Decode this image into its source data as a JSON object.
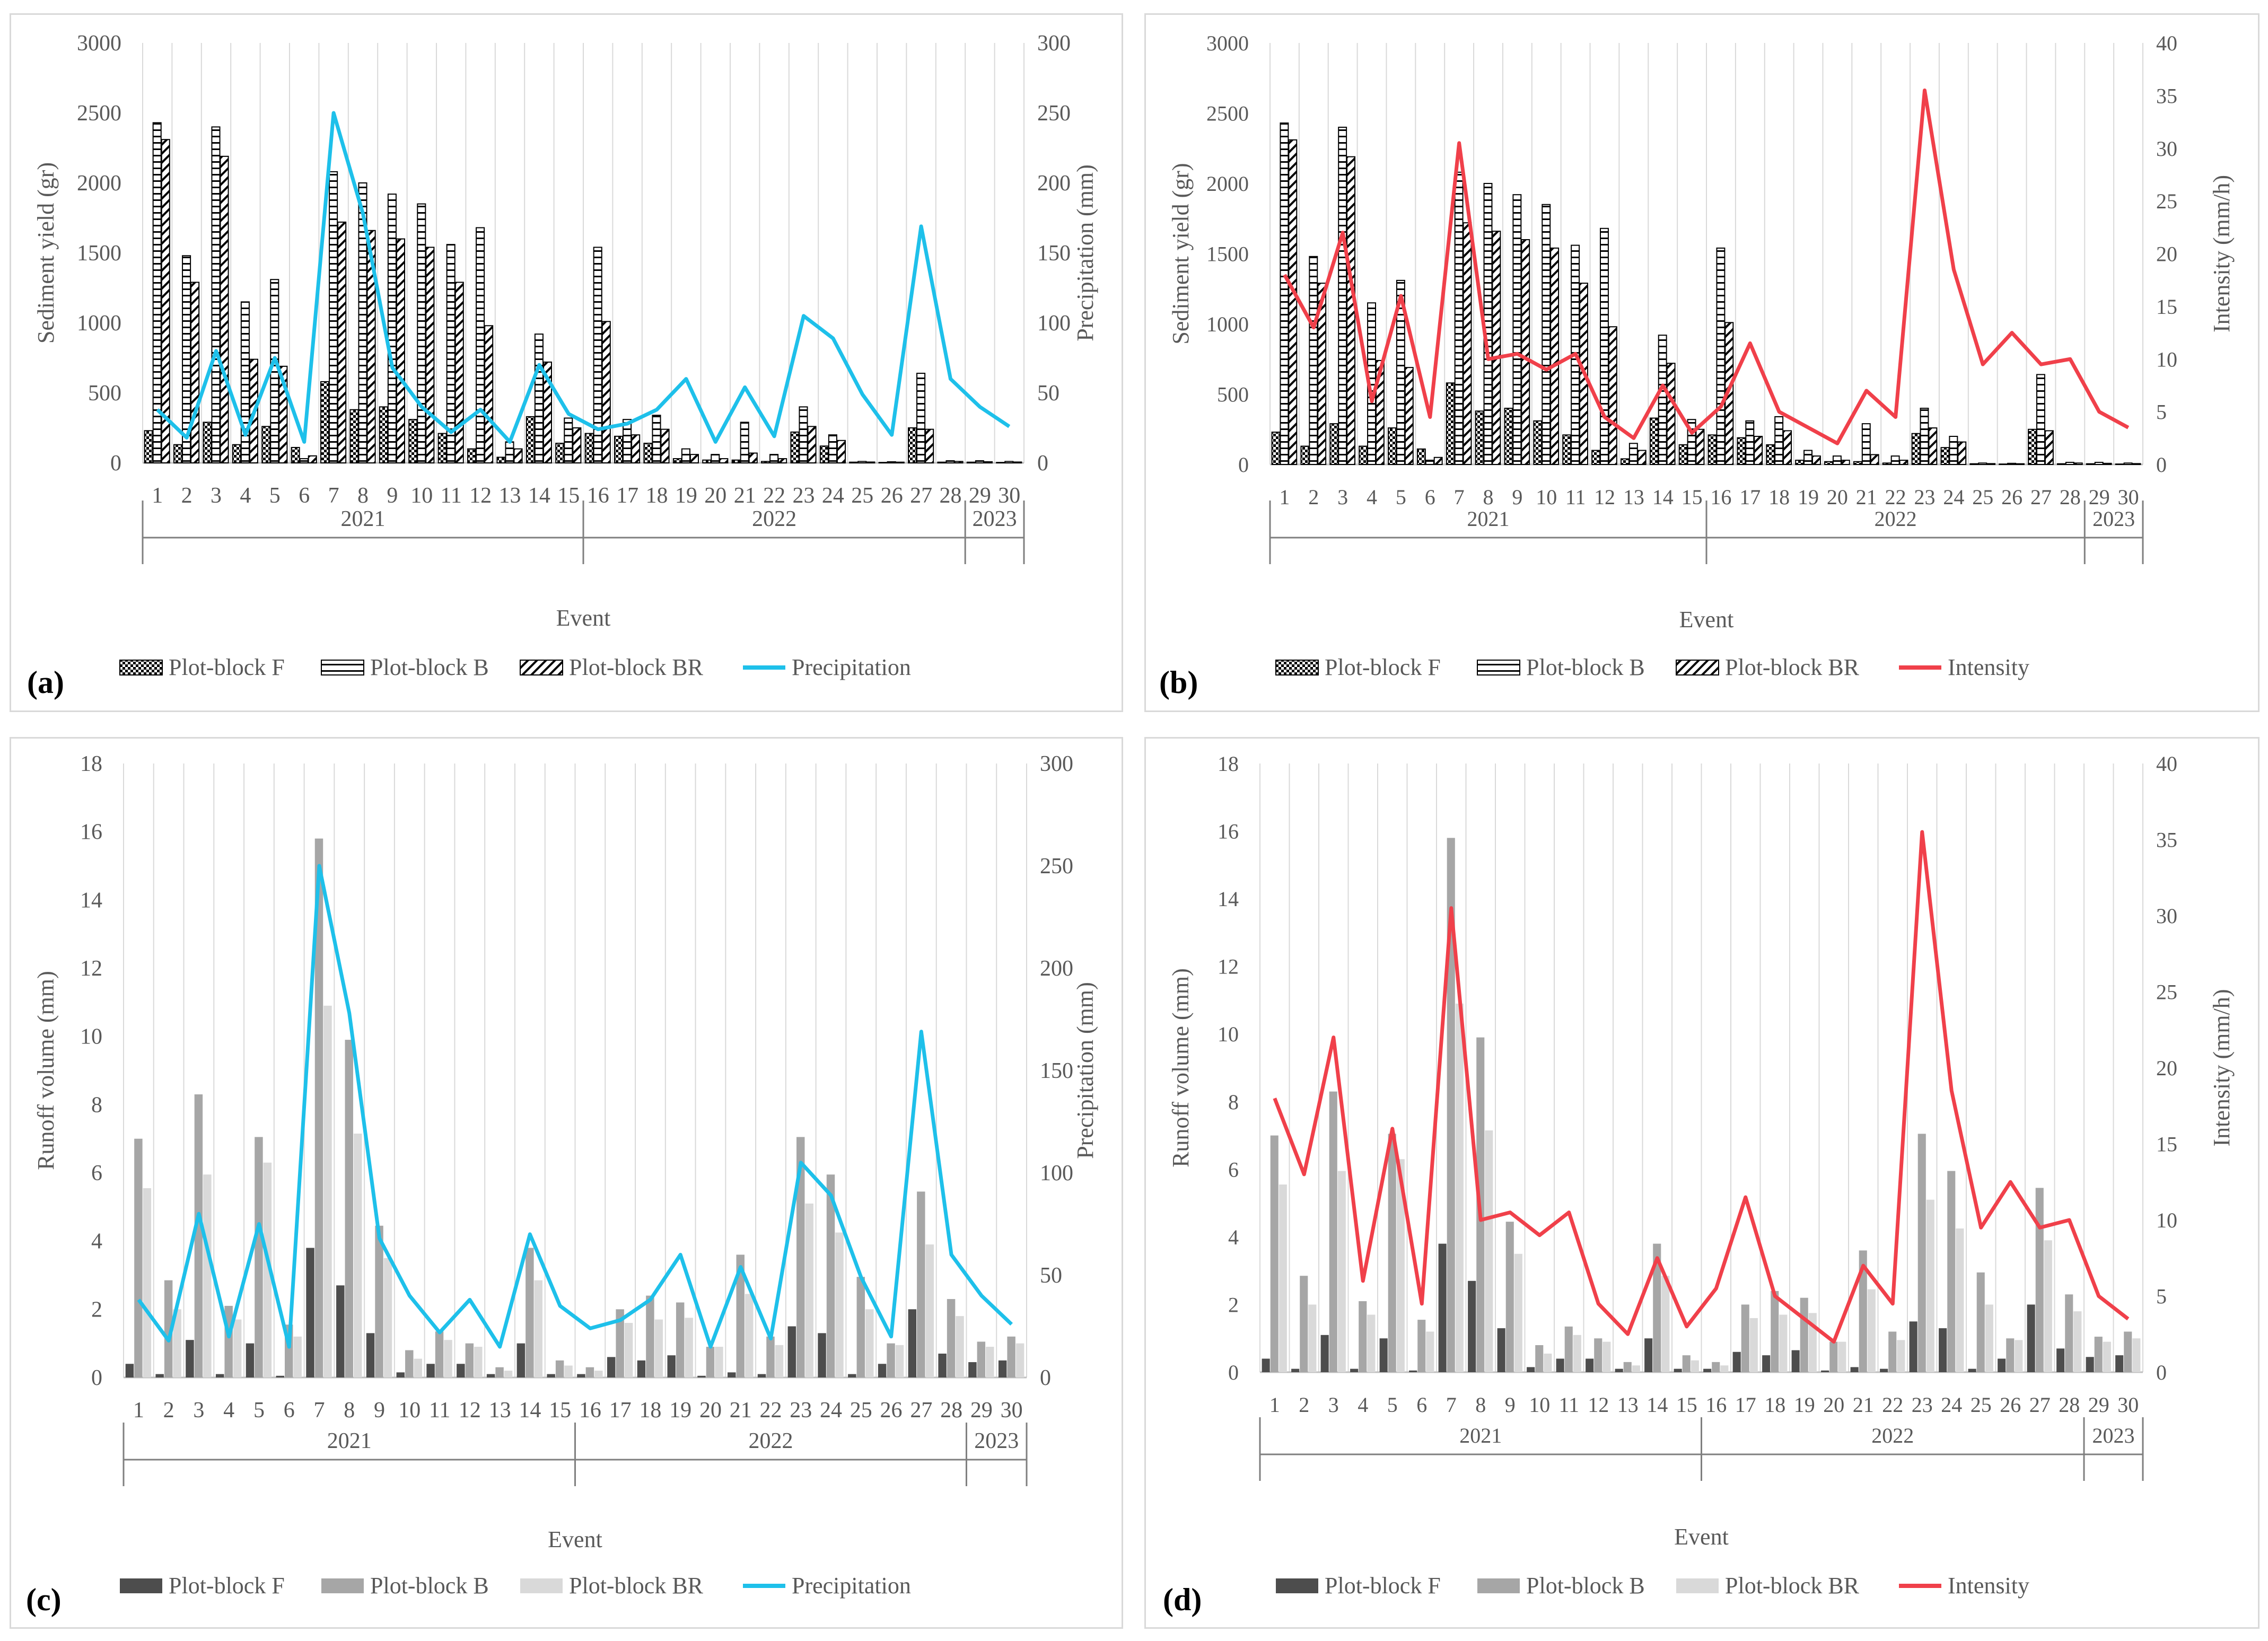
{
  "colors": {
    "precip_line": "#1ec0ea",
    "intensity_line": "#f0404a",
    "bar_F_solid": "#4d4d4d",
    "bar_B_solid": "#a6a6a6",
    "bar_BR_solid": "#d9d9d9",
    "axis": "#bfbfbf",
    "grid": "#d9d9d9",
    "text": "#595959"
  },
  "chart_data": [
    {
      "id": "a",
      "panel_label": "(a)",
      "type": "bar",
      "bar_style": "pattern",
      "title": "",
      "xlabel": "Event",
      "ylabel": "Sediment yield (gr)",
      "y2label": "Precipitation (mm)",
      "ylim": [
        0,
        3000
      ],
      "yticks": [
        0,
        500,
        1000,
        1500,
        2000,
        2500,
        3000
      ],
      "y2lim": [
        0,
        300
      ],
      "y2ticks": [
        0,
        50,
        100,
        150,
        200,
        250,
        300
      ],
      "categories": [
        "1",
        "2",
        "3",
        "4",
        "5",
        "6",
        "7",
        "8",
        "9",
        "10",
        "11",
        "12",
        "13",
        "14",
        "15",
        "16",
        "17",
        "18",
        "19",
        "20",
        "21",
        "22",
        "23",
        "24",
        "25",
        "26",
        "27",
        "28",
        "29",
        "30"
      ],
      "years": [
        {
          "label": "2021",
          "from": 1,
          "to": 15
        },
        {
          "label": "2022",
          "from": 16,
          "to": 28
        },
        {
          "label": "2023",
          "from": 29,
          "to": 30
        }
      ],
      "series": [
        {
          "name": "Plot-block F",
          "values": [
            230,
            130,
            290,
            130,
            260,
            110,
            580,
            380,
            400,
            310,
            210,
            100,
            40,
            330,
            140,
            210,
            190,
            140,
            30,
            20,
            20,
            10,
            220,
            120,
            5,
            3,
            250,
            5,
            5,
            3
          ]
        },
        {
          "name": "Plot-block B",
          "values": [
            2430,
            1480,
            2400,
            1150,
            1310,
            30,
            2080,
            2000,
            1920,
            1850,
            1560,
            1680,
            150,
            920,
            320,
            1540,
            310,
            340,
            100,
            60,
            290,
            60,
            400,
            200,
            10,
            8,
            640,
            15,
            15,
            10
          ]
        },
        {
          "name": "Plot-block BR",
          "values": [
            2310,
            1290,
            2190,
            740,
            690,
            50,
            1720,
            1660,
            1600,
            1540,
            1290,
            980,
            100,
            720,
            250,
            1010,
            200,
            240,
            60,
            30,
            70,
            30,
            260,
            160,
            6,
            5,
            240,
            10,
            8,
            6
          ]
        }
      ],
      "line": {
        "name": "Precipitation",
        "values": [
          38,
          18,
          80,
          20,
          75,
          15,
          250,
          178,
          68,
          40,
          22,
          38,
          15,
          70,
          35,
          24,
          28,
          38,
          60,
          15,
          54,
          19,
          105,
          89,
          49,
          20,
          169,
          60,
          40,
          26
        ]
      },
      "legend": [
        "Plot-block F",
        "Plot-block B",
        "Plot-block BR",
        "Precipitation"
      ]
    },
    {
      "id": "b",
      "panel_label": "(b)",
      "type": "bar",
      "bar_style": "pattern",
      "title": "",
      "xlabel": "Event",
      "ylabel": "Sediment yield (gr)",
      "y2label": "Intensity (mm/h)",
      "ylim": [
        0,
        3000
      ],
      "yticks": [
        0,
        500,
        1000,
        1500,
        2000,
        2500,
        3000
      ],
      "y2lim": [
        0,
        40
      ],
      "y2ticks": [
        0,
        5,
        10,
        15,
        20,
        25,
        30,
        35,
        40
      ],
      "categories": [
        "1",
        "2",
        "3",
        "4",
        "5",
        "6",
        "7",
        "8",
        "9",
        "10",
        "11",
        "12",
        "13",
        "14",
        "15",
        "16",
        "17",
        "18",
        "19",
        "20",
        "21",
        "22",
        "23",
        "24",
        "25",
        "26",
        "27",
        "28",
        "29",
        "30"
      ],
      "years": [
        {
          "label": "2021",
          "from": 1,
          "to": 15
        },
        {
          "label": "2022",
          "from": 16,
          "to": 28
        },
        {
          "label": "2023",
          "from": 29,
          "to": 30
        }
      ],
      "series": [
        {
          "name": "Plot-block F",
          "values": [
            230,
            130,
            290,
            130,
            260,
            110,
            580,
            380,
            400,
            310,
            210,
            100,
            40,
            330,
            140,
            210,
            190,
            140,
            30,
            20,
            20,
            10,
            220,
            120,
            5,
            3,
            250,
            5,
            5,
            3
          ]
        },
        {
          "name": "Plot-block B",
          "values": [
            2430,
            1480,
            2400,
            1150,
            1310,
            30,
            2080,
            2000,
            1920,
            1850,
            1560,
            1680,
            150,
            920,
            320,
            1540,
            310,
            340,
            100,
            60,
            290,
            60,
            400,
            200,
            10,
            8,
            640,
            15,
            15,
            10
          ]
        },
        {
          "name": "Plot-block BR",
          "values": [
            2310,
            1290,
            2190,
            740,
            690,
            50,
            1720,
            1660,
            1600,
            1540,
            1290,
            980,
            100,
            720,
            250,
            1010,
            200,
            240,
            60,
            30,
            70,
            30,
            260,
            160,
            6,
            5,
            240,
            10,
            8,
            6
          ]
        }
      ],
      "line": {
        "name": "Intensity",
        "values": [
          18,
          13,
          22,
          6,
          16,
          4.5,
          30.5,
          10,
          10.5,
          9,
          10.5,
          4.5,
          2.5,
          7.5,
          3,
          5.5,
          11.5,
          5,
          3.5,
          2,
          7,
          4.5,
          35.5,
          18.5,
          9.5,
          12.5,
          9.5,
          10,
          5,
          3.5
        ]
      },
      "legend": [
        "Plot-block F",
        "Plot-block B",
        "Plot-block BR",
        "Intensity"
      ]
    },
    {
      "id": "c",
      "panel_label": "(c)",
      "type": "bar",
      "bar_style": "solid",
      "title": "",
      "xlabel": "Event",
      "ylabel": "Runoff volume (mm)",
      "y2label": "Precipitation (mm)",
      "ylim": [
        0,
        18
      ],
      "yticks": [
        0,
        2,
        4,
        6,
        8,
        10,
        12,
        14,
        16,
        18
      ],
      "y2lim": [
        0,
        300
      ],
      "y2ticks": [
        0,
        50,
        100,
        150,
        200,
        250,
        300
      ],
      "categories": [
        "1",
        "2",
        "3",
        "4",
        "5",
        "6",
        "7",
        "8",
        "9",
        "10",
        "11",
        "12",
        "13",
        "14",
        "15",
        "16",
        "17",
        "18",
        "19",
        "20",
        "21",
        "22",
        "23",
        "24",
        "25",
        "26",
        "27",
        "28",
        "29",
        "30"
      ],
      "years": [
        {
          "label": "2021",
          "from": 1,
          "to": 15
        },
        {
          "label": "2022",
          "from": 16,
          "to": 28
        },
        {
          "label": "2023",
          "from": 29,
          "to": 30
        }
      ],
      "series": [
        {
          "name": "Plot-block F",
          "values": [
            0.4,
            0.1,
            1.1,
            0.1,
            1.0,
            0.05,
            3.8,
            2.7,
            1.3,
            0.15,
            0.4,
            0.4,
            0.1,
            1.0,
            0.1,
            0.1,
            0.6,
            0.5,
            0.65,
            0.05,
            0.15,
            0.1,
            1.5,
            1.3,
            0.1,
            0.4,
            2.0,
            0.7,
            0.45,
            0.5
          ]
        },
        {
          "name": "Plot-block B",
          "values": [
            7.0,
            2.85,
            8.3,
            2.1,
            7.05,
            1.55,
            15.8,
            9.9,
            4.45,
            0.8,
            1.35,
            1.0,
            0.3,
            3.8,
            0.5,
            0.3,
            2.0,
            2.4,
            2.2,
            0.9,
            3.6,
            1.2,
            7.05,
            5.95,
            2.95,
            1.0,
            5.45,
            2.3,
            1.05,
            1.2
          ]
        },
        {
          "name": "Plot-block BR",
          "values": [
            5.55,
            2.0,
            5.95,
            1.7,
            6.3,
            1.2,
            10.9,
            7.15,
            3.5,
            0.55,
            1.1,
            0.9,
            0.2,
            2.85,
            0.35,
            0.2,
            1.6,
            1.7,
            1.75,
            0.9,
            2.45,
            0.95,
            5.1,
            4.25,
            2.0,
            0.95,
            3.9,
            1.8,
            0.9,
            1.0
          ]
        }
      ],
      "line": {
        "name": "Precipitation",
        "values": [
          38,
          18,
          80,
          20,
          75,
          15,
          250,
          178,
          68,
          40,
          22,
          38,
          15,
          70,
          35,
          24,
          28,
          38,
          60,
          15,
          54,
          19,
          105,
          89,
          49,
          20,
          169,
          60,
          40,
          26
        ]
      },
      "legend": [
        "Plot-block F",
        "Plot-block B",
        "Plot-block BR",
        "Precipitation"
      ]
    },
    {
      "id": "d",
      "panel_label": "(d)",
      "type": "bar",
      "bar_style": "solid",
      "title": "",
      "xlabel": "Event",
      "ylabel": "Runoff volume (mm)",
      "y2label": "Intensity (mm/h)",
      "ylim": [
        0,
        18
      ],
      "yticks": [
        0,
        2,
        4,
        6,
        8,
        10,
        12,
        14,
        16,
        18
      ],
      "y2lim": [
        0,
        40
      ],
      "y2ticks": [
        0,
        5,
        10,
        15,
        20,
        25,
        30,
        35,
        40
      ],
      "categories": [
        "1",
        "2",
        "3",
        "4",
        "5",
        "6",
        "7",
        "8",
        "9",
        "10",
        "11",
        "12",
        "13",
        "14",
        "15",
        "16",
        "17",
        "18",
        "19",
        "20",
        "21",
        "22",
        "23",
        "24",
        "25",
        "26",
        "27",
        "28",
        "29",
        "30"
      ],
      "years": [
        {
          "label": "2021",
          "from": 1,
          "to": 15
        },
        {
          "label": "2022",
          "from": 16,
          "to": 28
        },
        {
          "label": "2023",
          "from": 29,
          "to": 30
        }
      ],
      "series": [
        {
          "name": "Plot-block F",
          "values": [
            0.4,
            0.1,
            1.1,
            0.1,
            1.0,
            0.05,
            3.8,
            2.7,
            1.3,
            0.15,
            0.4,
            0.4,
            0.1,
            1.0,
            0.1,
            0.1,
            0.6,
            0.5,
            0.65,
            0.05,
            0.15,
            0.1,
            1.5,
            1.3,
            0.1,
            0.4,
            2.0,
            0.7,
            0.45,
            0.5
          ]
        },
        {
          "name": "Plot-block B",
          "values": [
            7.0,
            2.85,
            8.3,
            2.1,
            7.05,
            1.55,
            15.8,
            9.9,
            4.45,
            0.8,
            1.35,
            1.0,
            0.3,
            3.8,
            0.5,
            0.3,
            2.0,
            2.4,
            2.2,
            0.9,
            3.6,
            1.2,
            7.05,
            5.95,
            2.95,
            1.0,
            5.45,
            2.3,
            1.05,
            1.2
          ]
        },
        {
          "name": "Plot-block BR",
          "values": [
            5.55,
            2.0,
            5.95,
            1.7,
            6.3,
            1.2,
            10.9,
            7.15,
            3.5,
            0.55,
            1.1,
            0.9,
            0.2,
            2.85,
            0.35,
            0.2,
            1.6,
            1.7,
            1.75,
            0.9,
            2.45,
            0.95,
            5.1,
            4.25,
            2.0,
            0.95,
            3.9,
            1.8,
            0.9,
            1.0
          ]
        }
      ],
      "line": {
        "name": "Intensity",
        "values": [
          18,
          13,
          22,
          6,
          16,
          4.5,
          30.5,
          10,
          10.5,
          9,
          10.5,
          4.5,
          2.5,
          7.5,
          3,
          5.5,
          11.5,
          5,
          3.5,
          2,
          7,
          4.5,
          35.5,
          18.5,
          9.5,
          12.5,
          9.5,
          10,
          5,
          3.5
        ]
      },
      "legend": [
        "Plot-block F",
        "Plot-block B",
        "Plot-block BR",
        "Intensity"
      ]
    }
  ]
}
